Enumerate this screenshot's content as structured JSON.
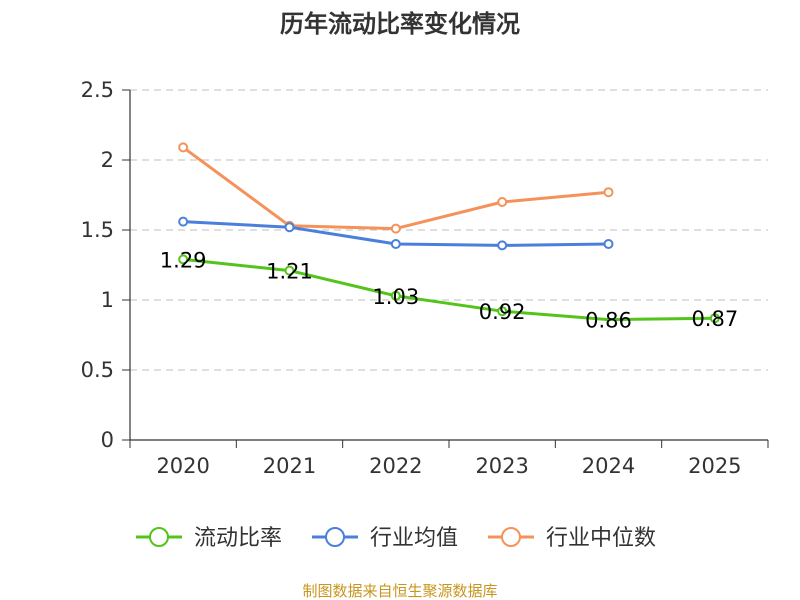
{
  "chart_data": {
    "type": "line",
    "title": "历年流动比率变化情况",
    "categories": [
      "2020",
      "2021",
      "2022",
      "2023",
      "2024",
      "2025"
    ],
    "ylim": [
      0,
      2.5
    ],
    "yticks": [
      "0",
      "0.5",
      "1",
      "1.5",
      "2",
      "2.5"
    ],
    "ytick_values": [
      0,
      0.5,
      1,
      1.5,
      2,
      2.5
    ],
    "grid": true,
    "legend_position": "bottom",
    "series": [
      {
        "name": "流动比率",
        "color": "#52c41a",
        "values": [
          1.29,
          1.21,
          1.03,
          0.92,
          0.86,
          0.87
        ],
        "labels": [
          "1.29",
          "1.21",
          "1.03",
          "0.92",
          "0.86",
          "0.87"
        ],
        "show_markers": [
          true,
          true,
          true,
          true,
          false,
          true
        ]
      },
      {
        "name": "行业均值",
        "color": "#4a7fdc",
        "values": [
          1.56,
          1.52,
          1.4,
          1.39,
          1.4,
          null
        ]
      },
      {
        "name": "行业中位数",
        "color": "#f5925a",
        "values": [
          2.09,
          1.53,
          1.51,
          1.7,
          1.77,
          null
        ]
      }
    ]
  },
  "source_text": "制图数据来自恒生聚源数据库",
  "source_color": "#c8961e"
}
